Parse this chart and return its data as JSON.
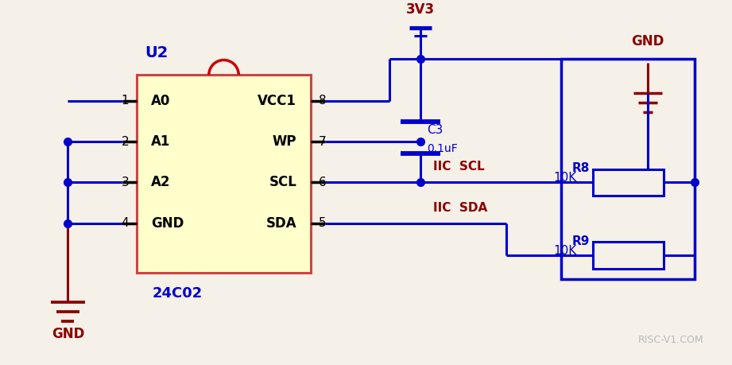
{
  "bg_color": "#f5f0e8",
  "blue": "#0000cc",
  "dark_red": "#8b0000",
  "black": "#000000",
  "yellow_fill": "#fffff0",
  "red_notch": "#cc0000",
  "ic_label": "U2",
  "ic_sublabel": "24C02",
  "pin_labels_left": [
    "A0",
    "A1",
    "A2",
    "GND"
  ],
  "pin_labels_right": [
    "VCC1",
    "WP",
    "SCL",
    "SDA"
  ],
  "pin_numbers_left": [
    "1",
    "2",
    "3",
    "4"
  ],
  "pin_numbers_right": [
    "8",
    "7",
    "6",
    "5"
  ],
  "title_3v3": "3V3",
  "cap_label": "C3",
  "cap_value": "0.1uF",
  "r8_label": "R8",
  "r9_label": "R9",
  "r8_value": "10K",
  "r9_value": "10K",
  "iic_scl": "IIC  SCL",
  "iic_sda": "IIC  SDA",
  "gnd_top_label": "GND",
  "gnd_bot_label": "GND",
  "watermark": "RISC-V1.COM"
}
